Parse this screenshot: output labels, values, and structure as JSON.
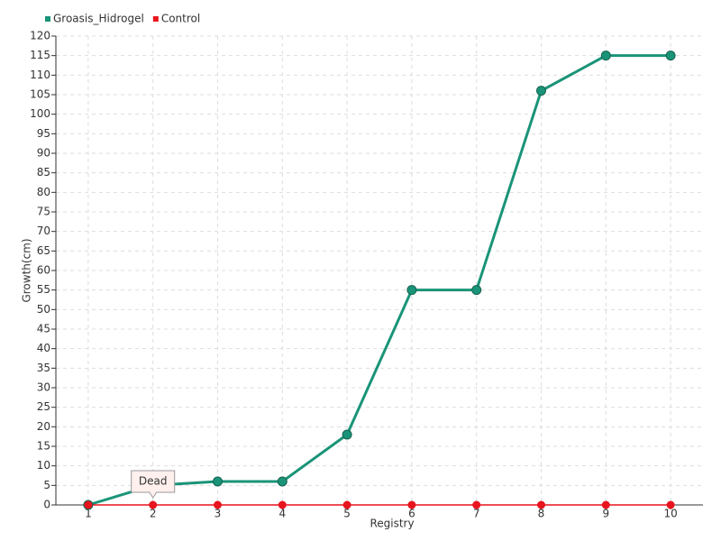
{
  "chart_data": {
    "type": "line",
    "x_label": "Registry",
    "y_label": "Growth(cm)",
    "categories": [
      "1",
      "2",
      "3",
      "4",
      "5",
      "6",
      "7",
      "8",
      "9",
      "10"
    ],
    "series": [
      {
        "name": "Groasis_Hidrogel",
        "color": "#1a9478",
        "values": [
          0,
          5,
          6,
          6,
          18,
          55,
          55,
          106,
          115,
          115
        ]
      },
      {
        "name": "Control",
        "color": "#e8141e",
        "values": [
          0,
          0,
          0,
          0,
          0,
          0,
          0,
          0,
          0,
          0
        ]
      }
    ],
    "ylim": [
      0,
      120
    ],
    "yticks": [
      0,
      5,
      10,
      15,
      20,
      25,
      30,
      35,
      40,
      45,
      50,
      55,
      60,
      65,
      70,
      75,
      80,
      85,
      90,
      95,
      100,
      105,
      110,
      115,
      120
    ],
    "grid": true,
    "legend": "top-left",
    "annotations": [
      {
        "label": "Dead",
        "x": "2"
      }
    ]
  }
}
